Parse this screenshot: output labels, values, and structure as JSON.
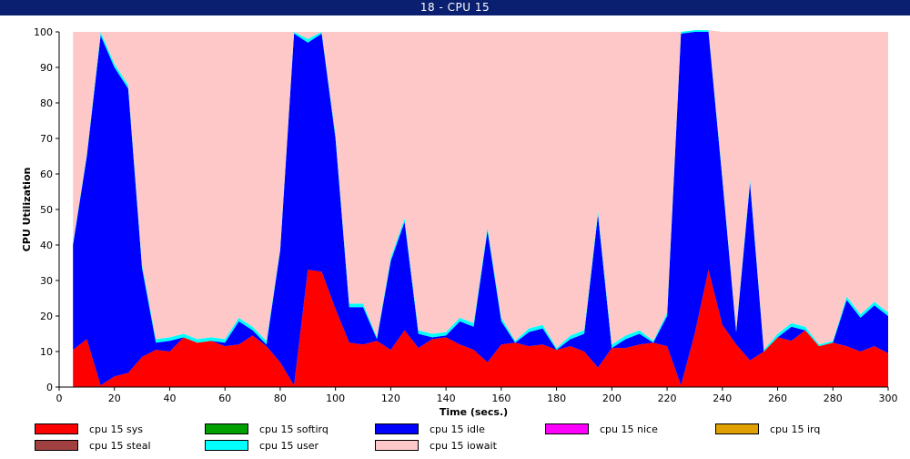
{
  "window": {
    "title": "18 - CPU 15"
  },
  "colors": {
    "sys": "#ff0000",
    "softirq": "#00a000",
    "idle": "#0000ff",
    "nice": "#ff00ff",
    "irq": "#e0a000",
    "steal": "#a04040",
    "user": "#00ffff",
    "iowait": "#ffc8c8"
  },
  "chart_data": {
    "type": "area",
    "stacked": true,
    "title": "",
    "xlabel": "Time (secs.)",
    "ylabel": "CPU Utilization",
    "xlim": [
      0,
      300
    ],
    "ylim": [
      0,
      100
    ],
    "x_ticks": [
      0,
      20,
      40,
      60,
      80,
      100,
      120,
      140,
      160,
      180,
      200,
      220,
      240,
      260,
      280,
      300
    ],
    "y_ticks": [
      0,
      10,
      20,
      30,
      40,
      50,
      60,
      70,
      80,
      90,
      100
    ],
    "grid": false,
    "legend": "bottom",
    "x": [
      5,
      10,
      15,
      20,
      25,
      30,
      35,
      40,
      45,
      50,
      55,
      60,
      65,
      70,
      75,
      80,
      85,
      90,
      95,
      100,
      105,
      110,
      115,
      120,
      125,
      130,
      135,
      140,
      145,
      150,
      155,
      160,
      165,
      170,
      175,
      180,
      185,
      190,
      195,
      200,
      205,
      210,
      215,
      220,
      225,
      230,
      235,
      240,
      245,
      250,
      255,
      260,
      265,
      270,
      275,
      280,
      285,
      290,
      295,
      300
    ],
    "series": [
      {
        "name": "cpu 15 sys",
        "key": "sys",
        "values": [
          10.5,
          13.5,
          0.5,
          3,
          4,
          8.5,
          10.5,
          10,
          14,
          12.5,
          13,
          11.5,
          12,
          14.5,
          11.5,
          7,
          0.5,
          33,
          32.5,
          22,
          12.5,
          12,
          13,
          10.5,
          16,
          11,
          13.5,
          14,
          12,
          10.5,
          7,
          12,
          12.5,
          11.5,
          12,
          10.5,
          11.5,
          10,
          5.5,
          11,
          11,
          12,
          12.5,
          11.5,
          0.5,
          15,
          33,
          17.5,
          12,
          7.5,
          10,
          14,
          13,
          16,
          11.5,
          12.5,
          11.5,
          10,
          11.5,
          9.5
        ]
      },
      {
        "name": "cpu 15 softirq",
        "key": "softirq",
        "values": [
          0,
          0,
          0,
          0,
          0,
          0,
          0,
          0,
          0,
          0,
          0,
          0,
          0,
          0,
          0,
          0,
          0,
          0,
          0,
          0,
          0,
          0,
          0,
          0,
          0,
          0,
          0,
          0,
          0,
          0,
          0,
          0,
          0,
          0,
          0,
          0,
          0,
          0,
          0,
          0,
          0,
          0,
          0,
          0,
          0,
          0,
          0,
          0,
          0,
          0,
          0,
          0,
          0,
          0,
          0,
          0,
          0,
          0,
          0,
          0
        ]
      },
      {
        "name": "cpu 15 idle",
        "key": "idle",
        "values": [
          29.5,
          51.5,
          98.5,
          87,
          80,
          25,
          2,
          3,
          0,
          0,
          0,
          1,
          6.5,
          1.5,
          0.5,
          31.5,
          99,
          64,
          67,
          48,
          10,
          10.5,
          0.5,
          25,
          30.5,
          4,
          0.5,
          0.5,
          6.5,
          6.5,
          37,
          6.5,
          0,
          4,
          4.5,
          0,
          2,
          5,
          43,
          0,
          2.5,
          3,
          0,
          8.5,
          99,
          85,
          67,
          41,
          3.5,
          50,
          0,
          0,
          4,
          0,
          0,
          0,
          13,
          9.5,
          11.5,
          10.5
        ]
      },
      {
        "name": "cpu 15 nice",
        "key": "nice",
        "values": [
          0,
          0,
          0,
          0,
          0,
          0,
          0,
          0,
          0,
          0,
          0,
          0,
          0,
          0,
          0,
          0,
          0,
          0,
          0,
          0,
          0,
          0,
          0,
          0,
          0,
          0,
          0,
          0,
          0,
          0,
          0,
          0,
          0,
          0,
          0,
          0,
          0,
          0,
          0,
          0,
          0,
          0,
          0,
          0,
          0,
          0,
          0,
          0,
          0,
          0,
          0,
          0,
          0,
          0,
          0,
          0,
          0,
          0,
          0,
          0
        ]
      },
      {
        "name": "cpu 15 irq",
        "key": "irq",
        "values": [
          0,
          0,
          0,
          0,
          0,
          0,
          0,
          0,
          0,
          0,
          0,
          0,
          0,
          0,
          0,
          0,
          0,
          0,
          0,
          0,
          0,
          0,
          0,
          0,
          0,
          0,
          0,
          0,
          0,
          0,
          0,
          0,
          0,
          0,
          0,
          0,
          0,
          0,
          0,
          0,
          0,
          0,
          0,
          0,
          0,
          0,
          0,
          0,
          0,
          0,
          0,
          0,
          0,
          0,
          0,
          0,
          0,
          0,
          0,
          0
        ]
      },
      {
        "name": "cpu 15 steal",
        "key": "steal",
        "values": [
          0,
          0,
          0,
          0,
          0,
          0,
          0,
          0,
          0,
          0,
          0,
          0,
          0,
          0,
          0,
          0,
          0,
          0,
          0,
          0,
          0,
          0,
          0,
          0,
          0,
          0,
          0,
          0,
          0,
          0,
          0,
          0,
          0,
          0,
          0,
          0,
          0,
          0,
          0,
          0,
          0,
          0,
          0,
          0,
          0,
          0,
          0,
          0,
          0,
          0,
          0,
          0,
          0,
          0,
          0,
          0,
          0,
          0,
          0,
          0
        ]
      },
      {
        "name": "cpu 15 user",
        "key": "user",
        "values": [
          0.5,
          0.5,
          1,
          1,
          1,
          1,
          1,
          1,
          1,
          1,
          1,
          1,
          1,
          1,
          1,
          0.5,
          0.5,
          1,
          0.5,
          1,
          1,
          1,
          0.5,
          1,
          1,
          1,
          1,
          1,
          1,
          1,
          1,
          1,
          0.5,
          1,
          1,
          0.5,
          1,
          1,
          1,
          1,
          1,
          1,
          0.5,
          1,
          0.5,
          0.5,
          0.5,
          1,
          0.5,
          1,
          0.5,
          1,
          1,
          1,
          0.5,
          0.5,
          1,
          1,
          1,
          1
        ]
      },
      {
        "name": "cpu 15 iowait",
        "key": "iowait",
        "values": [
          59.5,
          34.5,
          0,
          9,
          15,
          65.5,
          86.5,
          86,
          85,
          86.5,
          86,
          86.5,
          80.5,
          83,
          87,
          61,
          0,
          2,
          0,
          29,
          76.5,
          76.5,
          86,
          63.5,
          52.5,
          84,
          85,
          84.5,
          80.5,
          82,
          55,
          80.5,
          87,
          83.5,
          82.5,
          89,
          85.5,
          84,
          50.5,
          88,
          85.5,
          84,
          87,
          79,
          0,
          0,
          0,
          40.5,
          84,
          41.5,
          89.5,
          85,
          82,
          83,
          88,
          87,
          74.5,
          79.5,
          76,
          79
        ]
      }
    ]
  },
  "legend_items": [
    {
      "label": "cpu 15 sys",
      "key": "sys"
    },
    {
      "label": "cpu 15 softirq",
      "key": "softirq"
    },
    {
      "label": "cpu 15 idle",
      "key": "idle"
    },
    {
      "label": "cpu 15 nice",
      "key": "nice"
    },
    {
      "label": "cpu 15 irq",
      "key": "irq"
    },
    {
      "label": "cpu 15 steal",
      "key": "steal"
    },
    {
      "label": "cpu 15 user",
      "key": "user"
    },
    {
      "label": "cpu 15 iowait",
      "key": "iowait"
    }
  ]
}
